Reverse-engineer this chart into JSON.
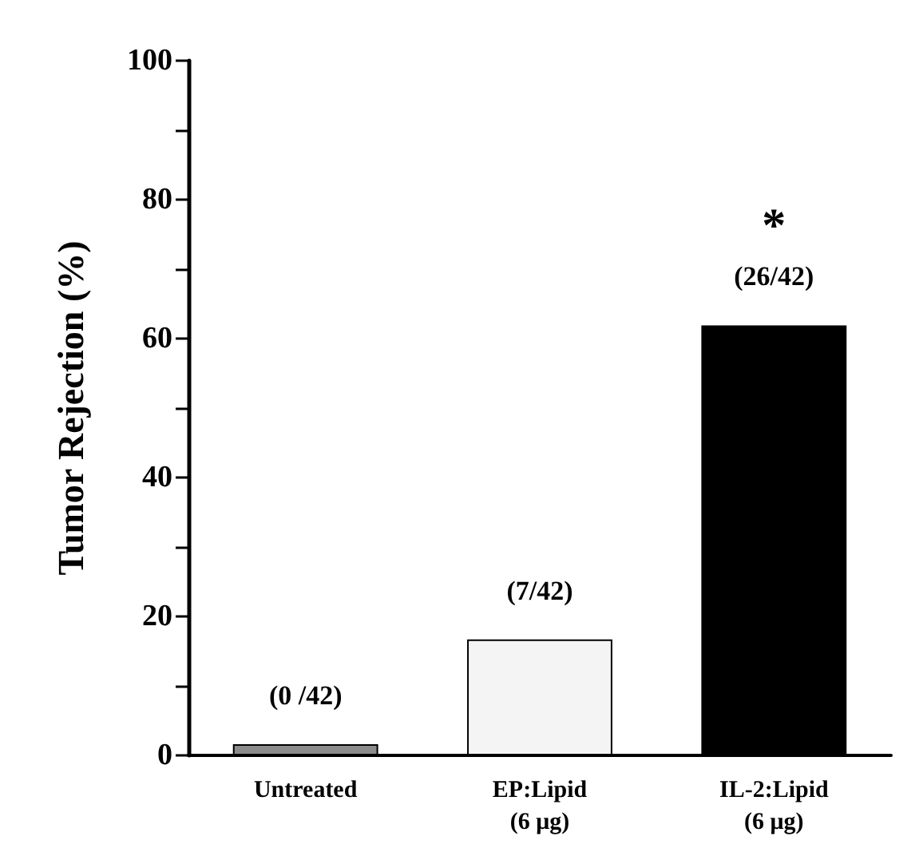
{
  "chart_data": {
    "type": "bar",
    "ylabel": "Tumor Rejection (%)",
    "categories": [
      "Untreated",
      "EP:Lipid\n(6 μg)",
      "IL-2:Lipid\n(6 μg)"
    ],
    "values": [
      1.6,
      16.7,
      61.9
    ],
    "colors": [
      "#8c8c8c",
      "#f4f4f4",
      "#000000"
    ],
    "value_labels": [
      "(0 /42)",
      "(7/42)",
      "(26/42)"
    ],
    "annotations": [
      "*"
    ],
    "ylim": [
      0,
      100
    ],
    "yticks": [
      0,
      {
        "value": 10,
        "label": null
      },
      20,
      {
        "value": 30,
        "label": null
      },
      40,
      {
        "value": 50,
        "label": null
      },
      60,
      {
        "value": 70,
        "label": null
      },
      80,
      {
        "value": 90,
        "label": null
      },
      100
    ],
    "grid": false
  }
}
